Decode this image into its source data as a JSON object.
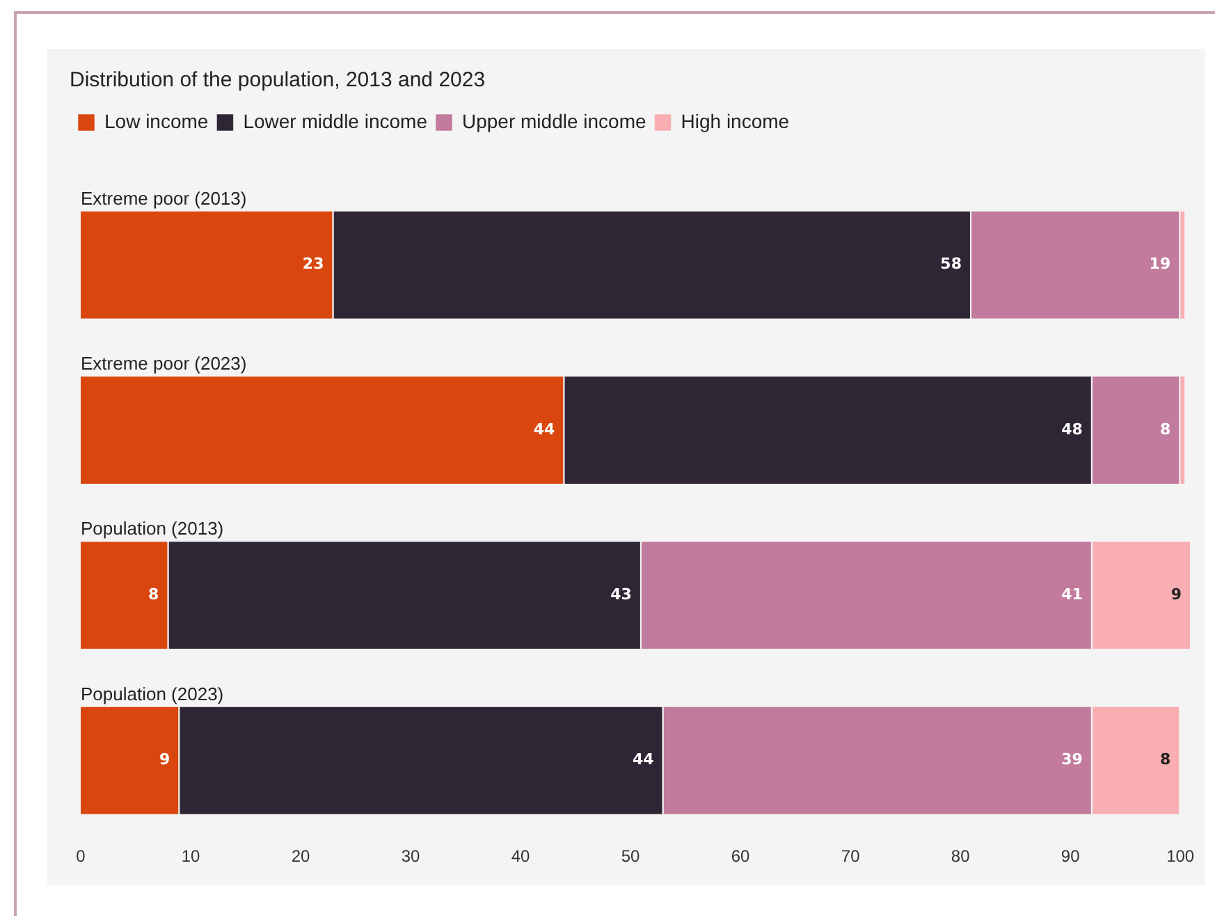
{
  "chart_data": {
    "type": "bar",
    "orientation": "horizontal",
    "stacked": true,
    "title": "Distribution of the population, 2013 and 2023",
    "categories": [
      "Extreme poor (2013)",
      "Extreme poor (2023)",
      "Population (2013)",
      "Population (2023)"
    ],
    "series": [
      {
        "name": "Low income",
        "color": "#d9470f",
        "values": [
          23,
          44,
          8,
          9
        ],
        "value_labels": [
          "23",
          "44",
          "8",
          "9"
        ]
      },
      {
        "name": "Lower middle income",
        "color": "#2e2535",
        "values": [
          58,
          48,
          43,
          44
        ],
        "value_labels": [
          "58",
          "48",
          "43",
          "44"
        ]
      },
      {
        "name": "Upper middle income",
        "color": "#c27b9c",
        "values": [
          19,
          8,
          41,
          39
        ],
        "value_labels": [
          "19",
          "8",
          "41",
          "39"
        ]
      },
      {
        "name": "High income",
        "color": "#f8aeb2",
        "values": [
          0.5,
          0.5,
          9,
          8
        ],
        "value_labels": [
          null,
          null,
          "9",
          "8"
        ]
      }
    ],
    "xlim": [
      0,
      101
    ],
    "xticks": [
      0,
      10,
      20,
      30,
      40,
      50,
      60,
      70,
      80,
      90,
      100
    ],
    "grid": false,
    "legend": "top left",
    "tick_labels": "x"
  }
}
